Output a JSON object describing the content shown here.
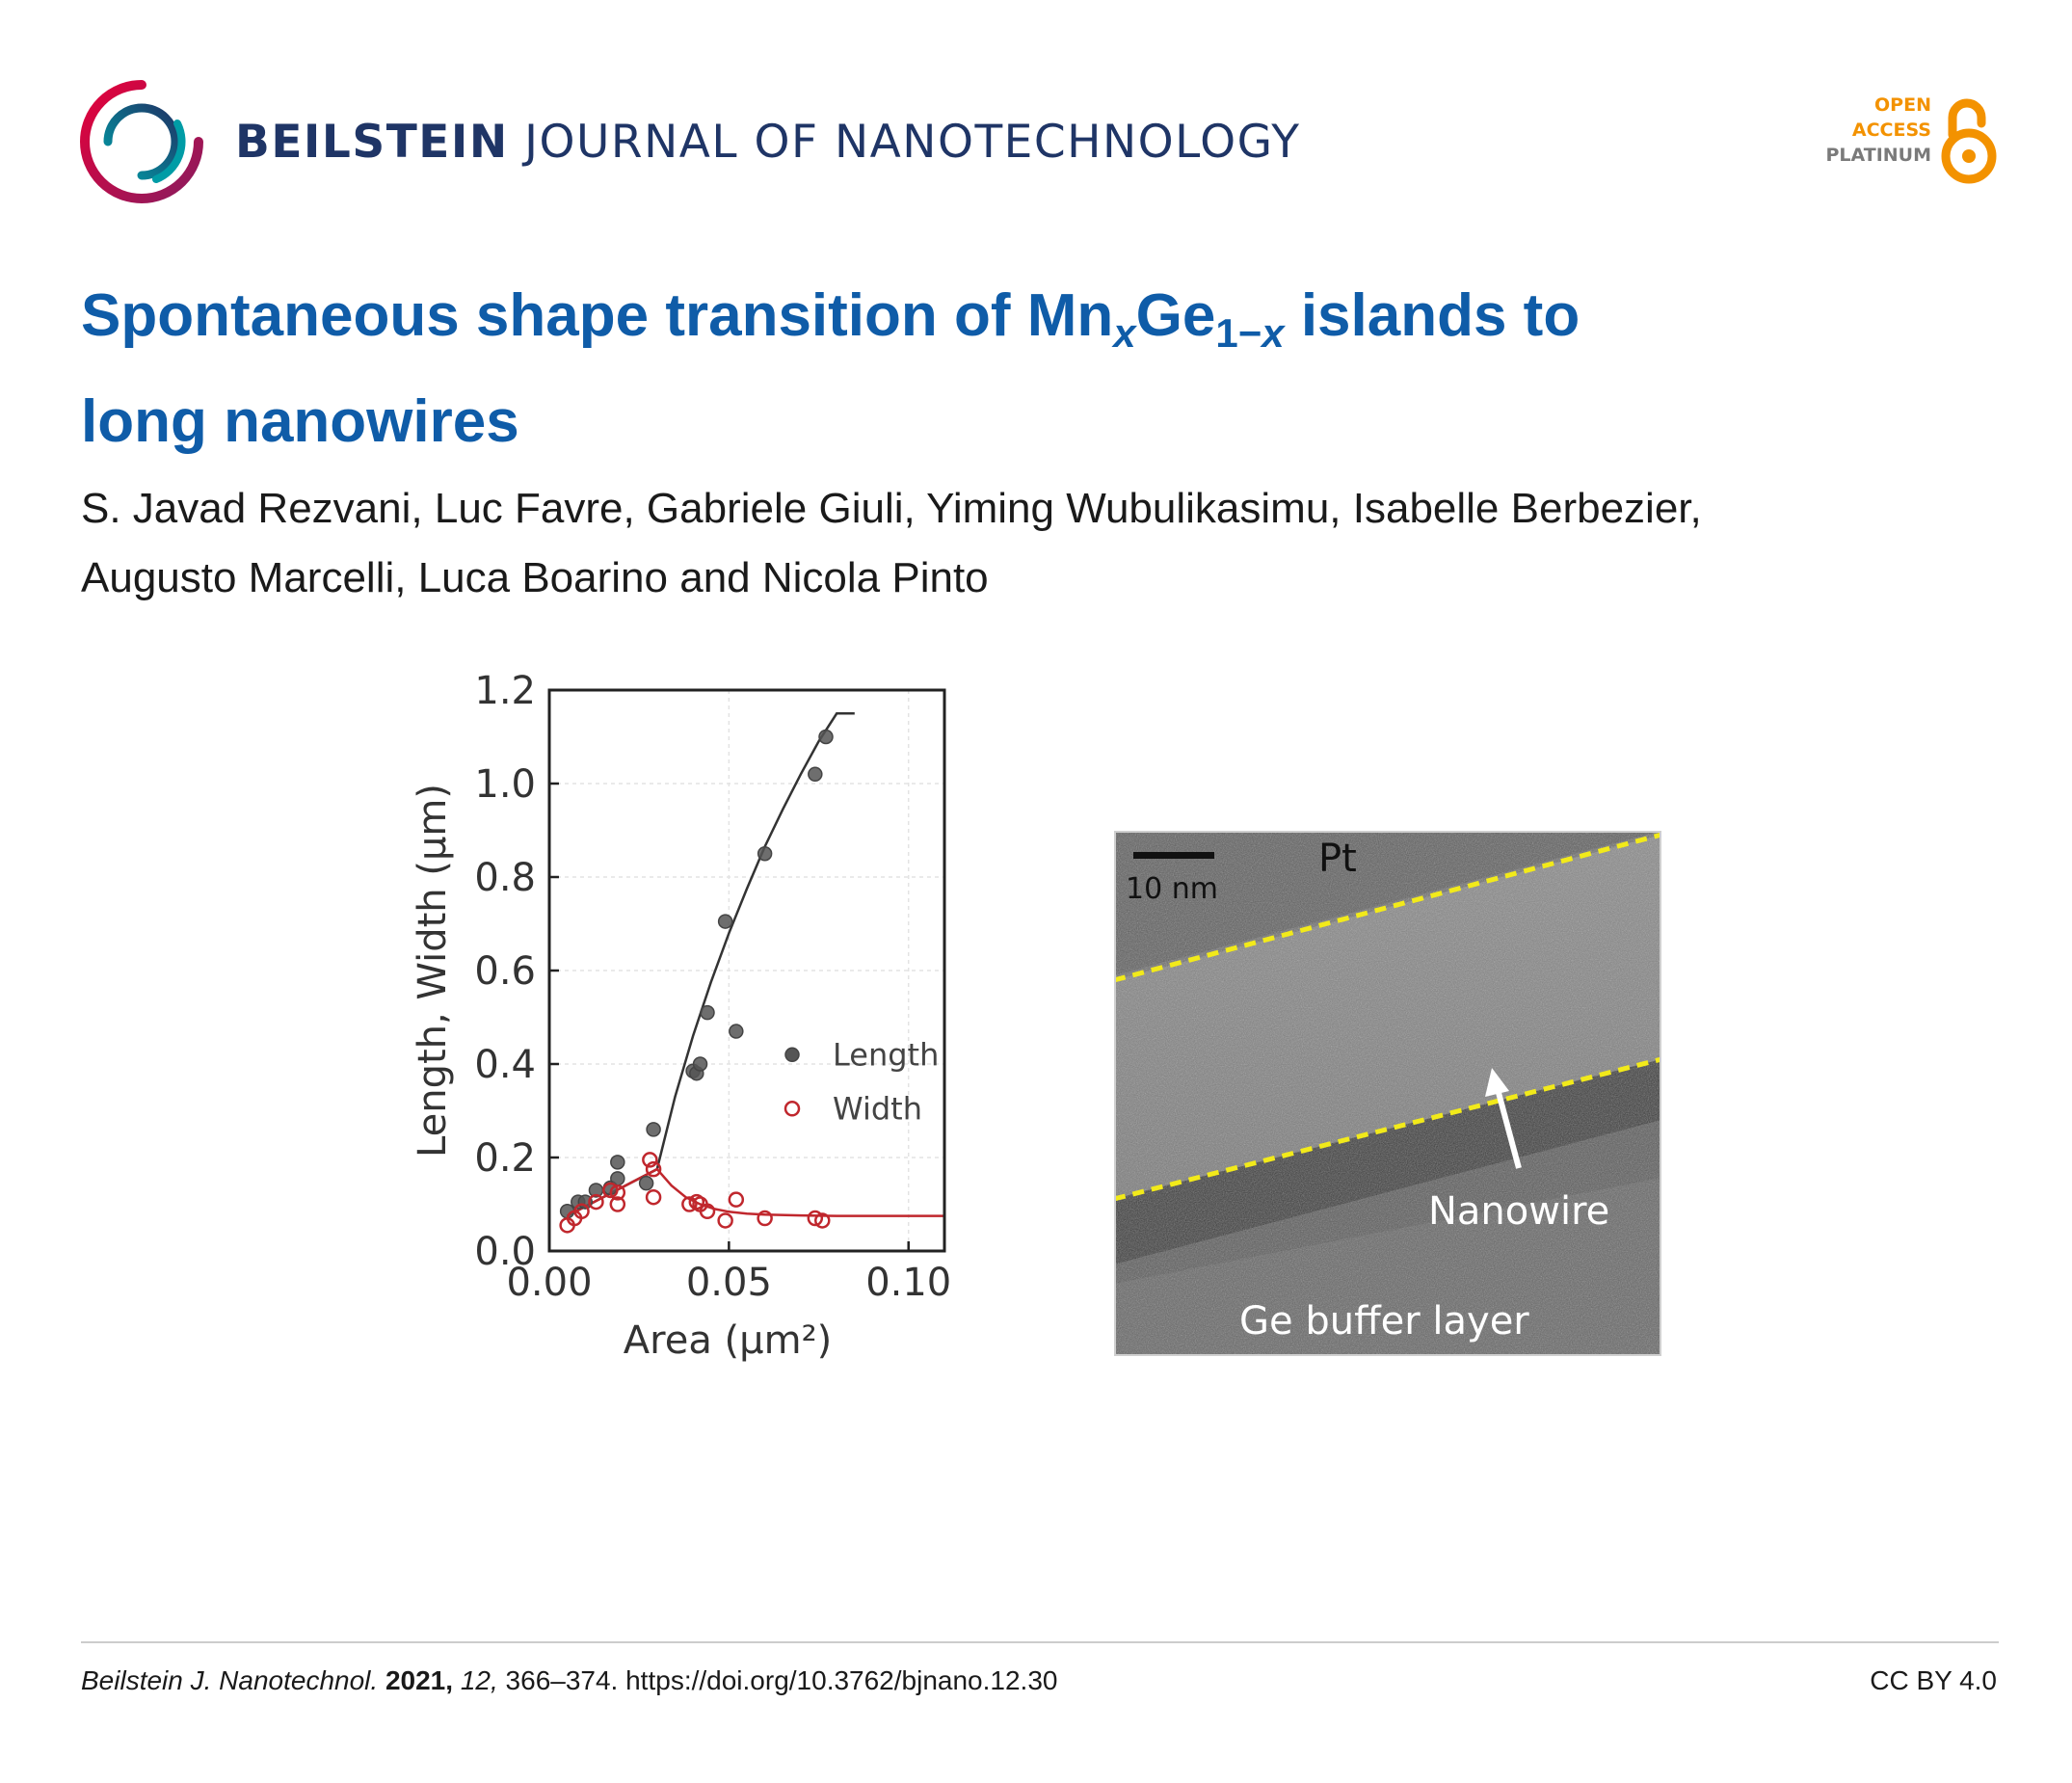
{
  "header": {
    "journal_bold": "BEILSTEIN",
    "journal_rest": "JOURNAL OF NANOTECHNOLOGY",
    "oa_open": "OPEN",
    "oa_access": "ACCESS",
    "oa_platinum": "PLATINUM",
    "colors": {
      "journal": "#1f3566",
      "oa_orange": "#f39200",
      "oa_grey": "#7a7a7a"
    }
  },
  "article": {
    "title_part1": "Spontaneous shape transition of Mn",
    "title_sub_x": "x",
    "title_mid": "Ge",
    "title_sub_1x_prefix": "1−",
    "title_sub_1x_var": "x",
    "title_part2": " islands to",
    "title_line2": "long nanowires",
    "authors_line1": "S. Javad Rezvani, Luc Favre, Gabriele Giuli, Yiming Wubulikasimu, Isabelle Berbezier,",
    "authors_line2": "Augusto Marcelli, Luca Boarino and Nicola Pinto",
    "title_color": "#0f5ca8"
  },
  "chart_data": {
    "type": "scatter",
    "xlabel": "Area (μm²)",
    "ylabel": "Length, Width (μm)",
    "xlim": [
      0.0,
      0.11
    ],
    "ylim": [
      0.0,
      1.2
    ],
    "x_ticks": [
      "0.00",
      "0.05",
      "0.10"
    ],
    "x_tick_values": [
      0.0,
      0.05,
      0.1
    ],
    "y_ticks": [
      "0.0",
      "0.2",
      "0.4",
      "0.6",
      "0.8",
      "1.0",
      "1.2"
    ],
    "y_tick_values": [
      0.0,
      0.2,
      0.4,
      0.6,
      0.8,
      1.0,
      1.2
    ],
    "grid": true,
    "legend_position": "right",
    "series": [
      {
        "name": "Length",
        "marker": "filled-circle",
        "color": "#555555",
        "x": [
          0.005,
          0.008,
          0.01,
          0.013,
          0.017,
          0.019,
          0.019,
          0.027,
          0.029,
          0.04,
          0.041,
          0.042,
          0.044,
          0.049,
          0.052,
          0.06,
          0.074,
          0.077
        ],
        "y": [
          0.085,
          0.105,
          0.105,
          0.13,
          0.135,
          0.155,
          0.19,
          0.145,
          0.26,
          0.385,
          0.38,
          0.4,
          0.51,
          0.705,
          0.47,
          0.85,
          1.02,
          1.1
        ]
      },
      {
        "name": "Width",
        "marker": "open-circle",
        "color": "#c0272d",
        "x": [
          0.005,
          0.007,
          0.009,
          0.013,
          0.017,
          0.019,
          0.019,
          0.028,
          0.029,
          0.029,
          0.039,
          0.041,
          0.042,
          0.044,
          0.049,
          0.052,
          0.06,
          0.074,
          0.076
        ],
        "y": [
          0.055,
          0.07,
          0.085,
          0.105,
          0.13,
          0.125,
          0.1,
          0.195,
          0.175,
          0.115,
          0.1,
          0.105,
          0.1,
          0.085,
          0.065,
          0.11,
          0.07,
          0.07,
          0.065
        ]
      }
    ],
    "fit_lines": [
      {
        "name": "length-fit",
        "color": "#333333",
        "x": [
          0.005,
          0.03,
          0.035,
          0.04,
          0.045,
          0.05,
          0.055,
          0.06,
          0.065,
          0.07,
          0.075,
          0.08,
          0.085
        ],
        "y": [
          0.075,
          0.175,
          0.33,
          0.46,
          0.575,
          0.68,
          0.775,
          0.865,
          0.945,
          1.02,
          1.09,
          1.15,
          1.15
        ]
      },
      {
        "name": "width-fit",
        "color": "#c0272d",
        "x": [
          0.005,
          0.03,
          0.034,
          0.038,
          0.042,
          0.046,
          0.05,
          0.055,
          0.06,
          0.07,
          0.08,
          0.09,
          0.11
        ],
        "y": [
          0.075,
          0.175,
          0.14,
          0.115,
          0.1,
          0.09,
          0.084,
          0.08,
          0.078,
          0.076,
          0.075,
          0.075,
          0.075
        ]
      }
    ]
  },
  "micrograph": {
    "scale_bar_label": "10 nm",
    "label_top": "Pt",
    "label_nanowire": "Nanowire",
    "label_bottom": "Ge buffer layer",
    "dash_color": "#f2ea1a"
  },
  "footer": {
    "journal_abbrev": "Beilstein J. Nanotechnol.",
    "year": "2021,",
    "volume": "12,",
    "pages_doi": "366–374. https://doi.org/10.3762/bjnano.12.30",
    "license": "CC BY 4.0"
  }
}
